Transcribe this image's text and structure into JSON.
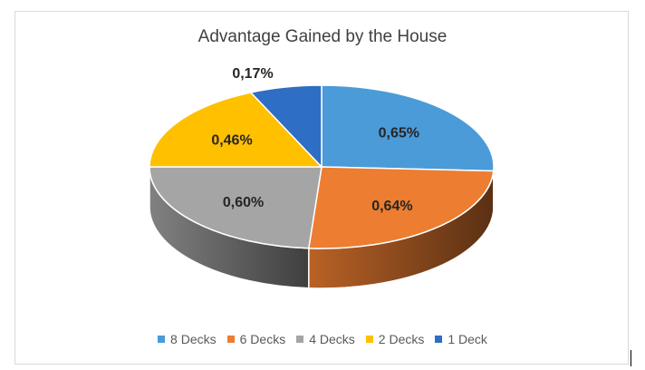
{
  "chart_data": {
    "type": "pie",
    "title": "Advantage Gained by the House",
    "categories": [
      "8 Decks",
      "6 Decks",
      "4 Decks",
      "2 Decks",
      "1 Deck"
    ],
    "values": [
      0.65,
      0.64,
      0.6,
      0.46,
      0.17
    ],
    "data_labels": [
      "0,65%",
      "0,64%",
      "0,60%",
      "0,46%",
      "0,17%"
    ],
    "colors": [
      "#4a9bd8",
      "#ed7d31",
      "#a5a5a5",
      "#ffc000",
      "#2e6ec4"
    ],
    "legend_position": "bottom",
    "style": "3d"
  }
}
